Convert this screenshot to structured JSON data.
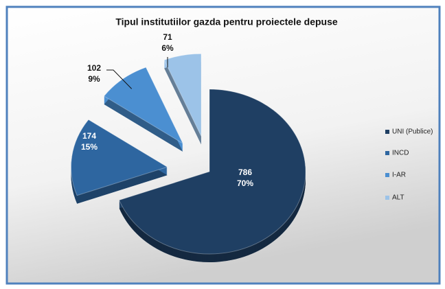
{
  "chart_data": {
    "type": "pie",
    "title": "Tipul institutiilor gazda pentru proiectele depuse",
    "categories": [
      "UNI (Publice)",
      "INCD",
      "I-AR",
      "ALT"
    ],
    "values": [
      786,
      174,
      102,
      71
    ],
    "percentages": [
      70,
      15,
      9,
      6
    ],
    "percentage_labels": [
      "70%",
      "15%",
      "9%",
      "6%"
    ],
    "colors": [
      "#1f3f63",
      "#2e66a0",
      "#4b8fd1",
      "#9cc3e8"
    ],
    "legend": "right"
  }
}
